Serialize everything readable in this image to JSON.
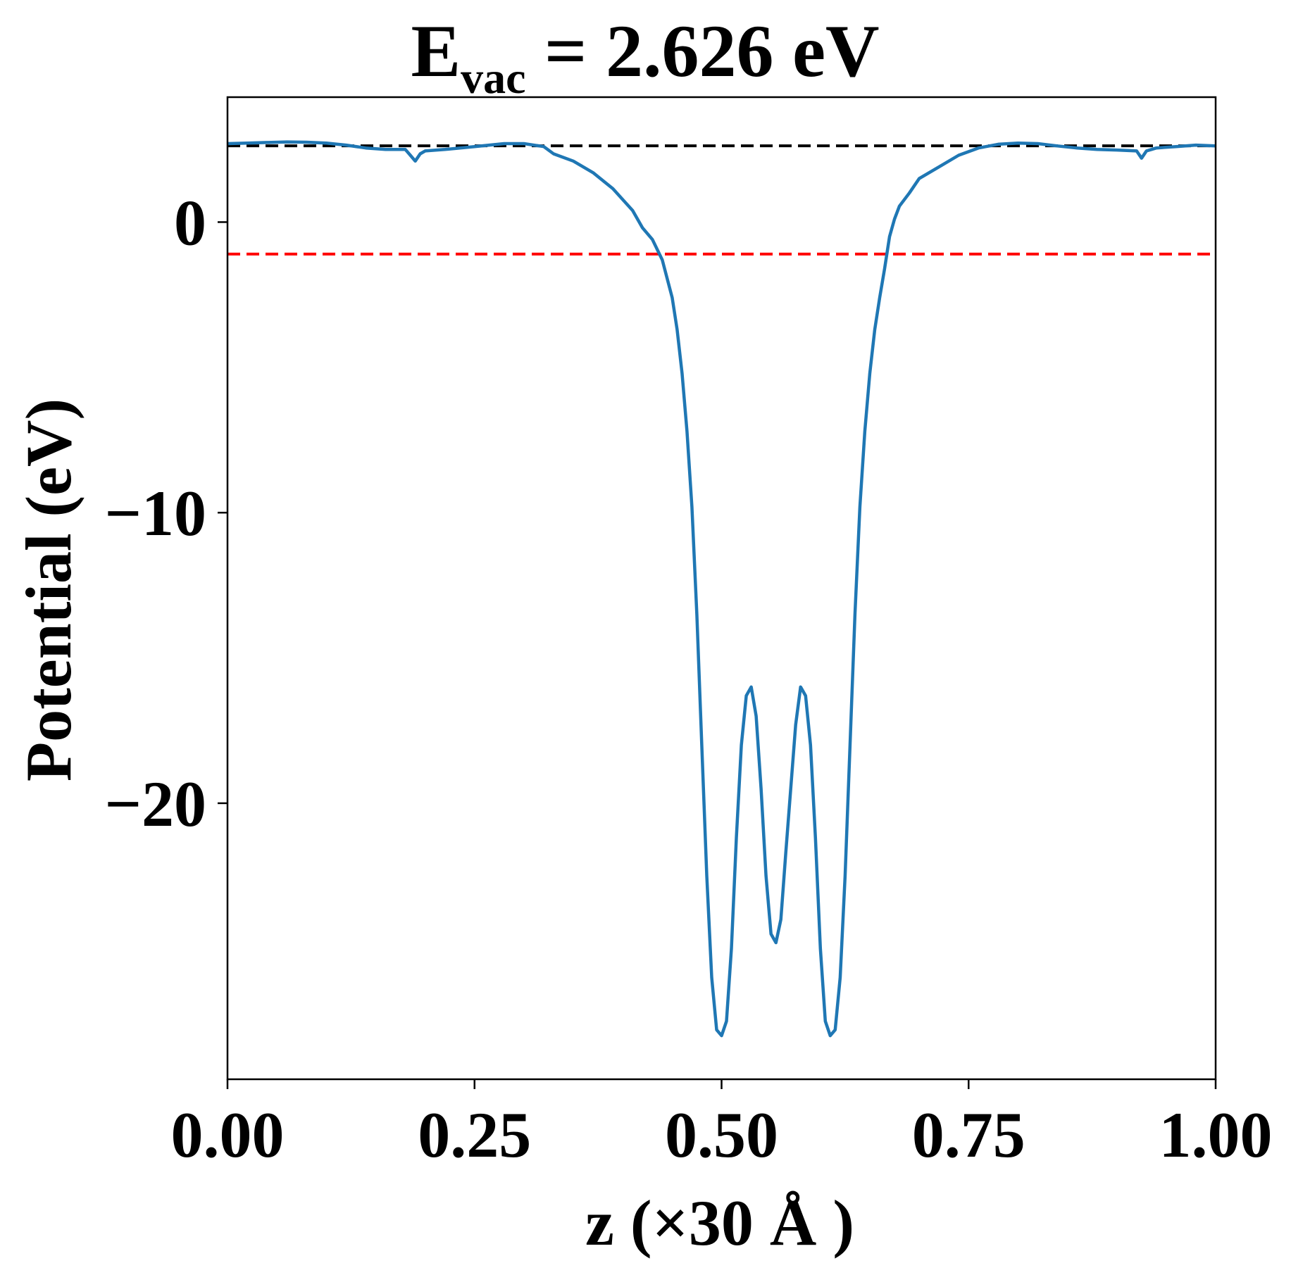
{
  "chart_data": {
    "type": "line",
    "title": {
      "main": "E",
      "subscript": "vac",
      "rest": " = 2.626 eV"
    },
    "xlabel": "z (×30 Å )",
    "ylabel": "Potential (eV)",
    "xlim": [
      0.0,
      1.0
    ],
    "ylim": [
      -29.5,
      4.3
    ],
    "xticks": [
      {
        "value": 0.0,
        "label": "0.00"
      },
      {
        "value": 0.25,
        "label": "0.25"
      },
      {
        "value": 0.5,
        "label": "0.50"
      },
      {
        "value": 0.75,
        "label": "0.75"
      },
      {
        "value": 1.0,
        "label": "1.00"
      }
    ],
    "yticks": [
      {
        "value": 0,
        "label": "0"
      },
      {
        "value": -10,
        "label": "−10"
      },
      {
        "value": -20,
        "label": "−20"
      }
    ],
    "grid": false,
    "hlines": [
      {
        "y": 2.626,
        "color": "#000000",
        "style": "dashed"
      },
      {
        "y": -1.1,
        "color": "#ff0000",
        "style": "dashed"
      }
    ],
    "series": [
      {
        "color": "#1f77b4",
        "x": [
          0.0,
          0.02,
          0.04,
          0.06,
          0.08,
          0.1,
          0.12,
          0.14,
          0.16,
          0.18,
          0.185,
          0.19,
          0.195,
          0.2,
          0.22,
          0.25,
          0.28,
          0.3,
          0.32,
          0.33,
          0.35,
          0.37,
          0.39,
          0.41,
          0.42,
          0.43,
          0.44,
          0.45,
          0.455,
          0.46,
          0.465,
          0.47,
          0.475,
          0.48,
          0.485,
          0.49,
          0.495,
          0.5,
          0.505,
          0.51,
          0.515,
          0.52,
          0.525,
          0.53,
          0.535,
          0.54,
          0.545,
          0.55,
          0.555,
          0.56,
          0.565,
          0.57,
          0.575,
          0.58,
          0.585,
          0.59,
          0.595,
          0.6,
          0.605,
          0.61,
          0.615,
          0.62,
          0.625,
          0.63,
          0.635,
          0.64,
          0.645,
          0.65,
          0.655,
          0.66,
          0.665,
          0.67,
          0.675,
          0.68,
          0.69,
          0.7,
          0.72,
          0.74,
          0.76,
          0.78,
          0.8,
          0.82,
          0.84,
          0.86,
          0.88,
          0.9,
          0.92,
          0.925,
          0.93,
          0.935,
          0.94,
          0.96,
          0.98,
          1.0
        ],
        "y": [
          2.7,
          2.72,
          2.74,
          2.76,
          2.75,
          2.72,
          2.65,
          2.55,
          2.5,
          2.5,
          2.3,
          2.1,
          2.35,
          2.45,
          2.5,
          2.6,
          2.7,
          2.7,
          2.6,
          2.35,
          2.1,
          1.7,
          1.15,
          0.4,
          -0.2,
          -0.6,
          -1.3,
          -2.6,
          -3.7,
          -5.2,
          -7.2,
          -9.8,
          -13.5,
          -18.0,
          -22.5,
          -26.0,
          -27.8,
          -28.0,
          -27.5,
          -25.0,
          -21.2,
          -18.0,
          -16.3,
          -16.0,
          -17.0,
          -19.5,
          -22.5,
          -24.5,
          -24.8,
          -24.0,
          -21.7,
          -19.5,
          -17.3,
          -16.0,
          -16.3,
          -18.0,
          -21.2,
          -25.0,
          -27.5,
          -28.0,
          -27.8,
          -26.0,
          -22.5,
          -18.0,
          -13.5,
          -9.8,
          -7.2,
          -5.2,
          -3.7,
          -2.6,
          -1.6,
          -0.5,
          0.1,
          0.55,
          1.0,
          1.5,
          1.9,
          2.3,
          2.55,
          2.68,
          2.72,
          2.7,
          2.62,
          2.55,
          2.5,
          2.48,
          2.45,
          2.2,
          2.45,
          2.5,
          2.55,
          2.6,
          2.65,
          2.62
        ]
      }
    ]
  }
}
